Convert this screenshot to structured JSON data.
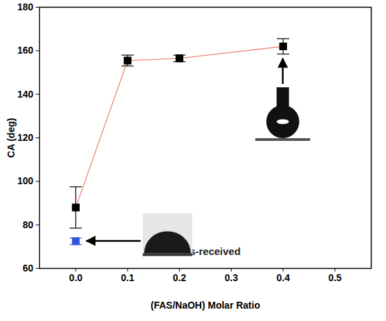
{
  "chart_data": {
    "type": "scatter",
    "x_label": "(FAS/NaOH) Molar Ratio",
    "y_label": "CA (deg)",
    "xlim": [
      -0.07,
      0.57
    ],
    "xticks": [
      {
        "value": 0,
        "label": "0.0"
      },
      {
        "value": 0.1,
        "label": "0.1"
      },
      {
        "value": 0.2,
        "label": "0.2"
      },
      {
        "value": 0.3,
        "label": "0.3"
      },
      {
        "value": 0.4,
        "label": "0.4"
      },
      {
        "value": 0.5,
        "label": "0.5"
      }
    ],
    "ylim": [
      60,
      180
    ],
    "yticks": [
      60,
      80,
      100,
      120,
      140,
      160,
      180
    ],
    "series": [
      {
        "x": [
          0,
          0.1,
          0.2,
          0.4
        ],
        "values": [
          88,
          155.5,
          156.5,
          162
        ],
        "errors": [
          9.5,
          2.5,
          1.5,
          3.5
        ],
        "color": "#000000",
        "marker": "square",
        "line_style": "solid"
      },
      {
        "x": [
          0
        ],
        "values": [
          72.5
        ],
        "errors": [
          1.5
        ],
        "color": "#3355dd",
        "marker": "square"
      }
    ],
    "annotations": [
      {
        "text": "As-received"
      }
    ]
  }
}
